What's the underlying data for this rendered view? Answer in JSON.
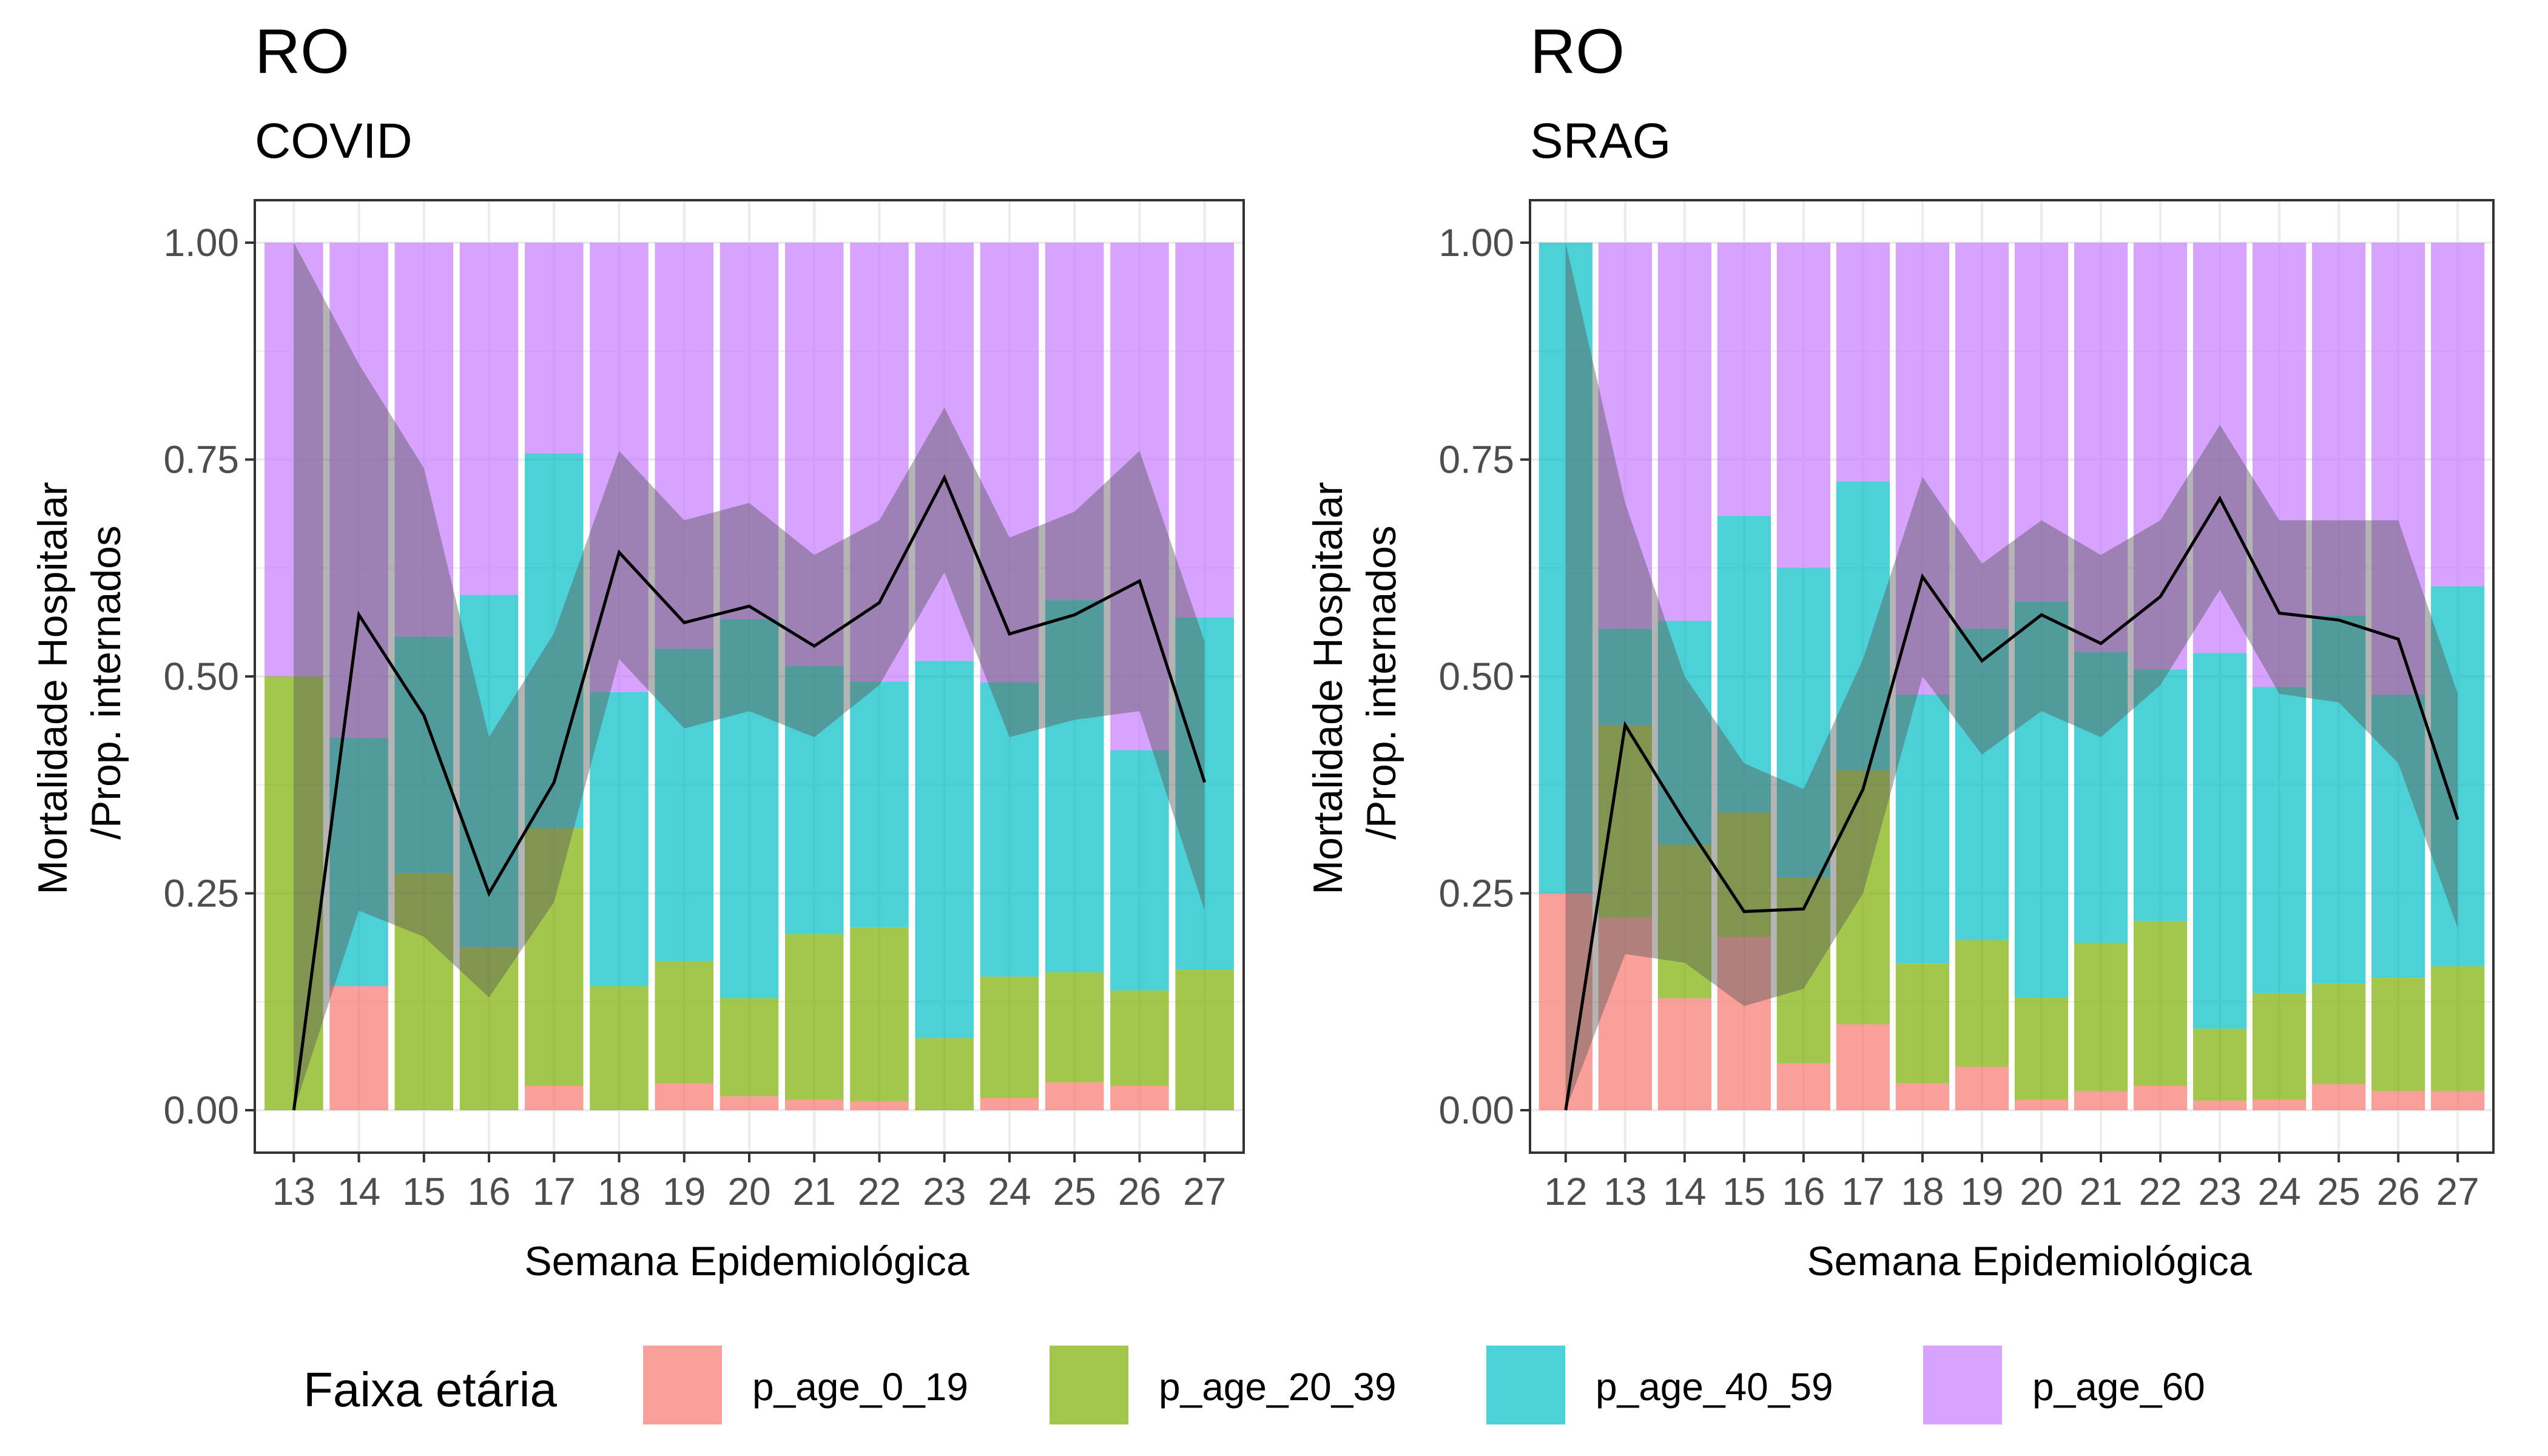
{
  "chart_data": [
    {
      "type": "bar",
      "stacking": "fill",
      "title": "RO",
      "subtitle": "COVID",
      "xlabel": "Semana Epidemiológica",
      "ylabel": "Mortalidade Hospitalar\n/Prop. internados",
      "ylim": [
        0,
        1
      ],
      "yticks": [
        "0.00",
        "0.25",
        "0.50",
        "0.75",
        "1.00"
      ],
      "grid": true,
      "categories": [
        "13",
        "14",
        "15",
        "16",
        "17",
        "18",
        "19",
        "20",
        "21",
        "22",
        "23",
        "24",
        "25",
        "26",
        "27"
      ],
      "series": [
        {
          "name": "p_age_0_19",
          "values": [
            0,
            0.143,
            0,
            0,
            0.028,
            0,
            0.031,
            0.016,
            0.012,
            0.01,
            0,
            0.014,
            0.032,
            0.028,
            0
          ]
        },
        {
          "name": "p_age_20_39",
          "values": [
            0.5,
            0,
            0.273,
            0.188,
            0.297,
            0.143,
            0.141,
            0.113,
            0.191,
            0.201,
            0.083,
            0.14,
            0.127,
            0.11,
            0.162
          ]
        },
        {
          "name": "p_age_40_59",
          "values": [
            0,
            0.286,
            0.273,
            0.406,
            0.432,
            0.339,
            0.36,
            0.437,
            0.309,
            0.283,
            0.435,
            0.339,
            0.429,
            0.277,
            0.406
          ]
        },
        {
          "name": "p_age_60",
          "values": [
            0.5,
            0.571,
            0.454,
            0.406,
            0.243,
            0.518,
            0.468,
            0.434,
            0.488,
            0.506,
            0.482,
            0.507,
            0.412,
            0.585,
            0.432
          ]
        }
      ],
      "mortality": {
        "values": [
          0.0,
          0.571,
          0.455,
          0.25,
          0.378,
          0.643,
          0.562,
          0.581,
          0.535,
          0.585,
          0.729,
          0.549,
          0.571,
          0.61,
          0.378
        ],
        "lower": [
          0.0,
          0.23,
          0.2,
          0.13,
          0.24,
          0.52,
          0.44,
          0.46,
          0.43,
          0.49,
          0.62,
          0.43,
          0.45,
          0.46,
          0.23
        ],
        "upper": [
          1.0,
          0.86,
          0.74,
          0.43,
          0.55,
          0.76,
          0.68,
          0.7,
          0.64,
          0.68,
          0.81,
          0.66,
          0.69,
          0.76,
          0.54
        ]
      }
    },
    {
      "type": "bar",
      "stacking": "fill",
      "title": "RO",
      "subtitle": "SRAG",
      "xlabel": "Semana Epidemiológica",
      "ylabel": "Mortalidade Hospitalar\n/Prop. internados",
      "ylim": [
        0,
        1
      ],
      "yticks": [
        "0.00",
        "0.25",
        "0.50",
        "0.75",
        "1.00"
      ],
      "grid": true,
      "categories": [
        "12",
        "13",
        "14",
        "15",
        "16",
        "17",
        "18",
        "19",
        "20",
        "21",
        "22",
        "23",
        "24",
        "25",
        "26",
        "27"
      ],
      "series": [
        {
          "name": "p_age_0_19",
          "values": [
            0.25,
            0.222,
            0.129,
            0.2,
            0.054,
            0.099,
            0.031,
            0.05,
            0.012,
            0.022,
            0.028,
            0.011,
            0.012,
            0.03,
            0.022,
            0.022
          ]
        },
        {
          "name": "p_age_20_39",
          "values": [
            0,
            0.222,
            0.177,
            0.143,
            0.214,
            0.293,
            0.138,
            0.146,
            0.118,
            0.171,
            0.19,
            0.083,
            0.123,
            0.116,
            0.131,
            0.144
          ]
        },
        {
          "name": "p_age_40_59",
          "values": [
            0.75,
            0.111,
            0.258,
            0.342,
            0.357,
            0.333,
            0.31,
            0.359,
            0.456,
            0.335,
            0.29,
            0.433,
            0.353,
            0.424,
            0.326,
            0.438
          ]
        },
        {
          "name": "p_age_60",
          "values": [
            0,
            0.445,
            0.436,
            0.315,
            0.375,
            0.275,
            0.521,
            0.445,
            0.414,
            0.472,
            0.492,
            0.473,
            0.512,
            0.43,
            0.521,
            0.396
          ]
        }
      ],
      "mortality": {
        "values": [
          0.0,
          0.444,
          0.333,
          0.229,
          0.232,
          0.37,
          0.615,
          0.518,
          0.571,
          0.538,
          0.592,
          0.705,
          0.573,
          0.565,
          0.543,
          0.335
        ],
        "lower": [
          0.0,
          0.18,
          0.17,
          0.12,
          0.14,
          0.25,
          0.5,
          0.41,
          0.46,
          0.43,
          0.49,
          0.6,
          0.48,
          0.47,
          0.4,
          0.21
        ],
        "upper": [
          1.0,
          0.7,
          0.5,
          0.4,
          0.37,
          0.52,
          0.73,
          0.63,
          0.68,
          0.64,
          0.68,
          0.79,
          0.68,
          0.68,
          0.68,
          0.48
        ]
      }
    }
  ],
  "legend": {
    "title": "Faixa etária",
    "items": [
      {
        "label": "p_age_0_19",
        "color": "#F8766D"
      },
      {
        "label": "p_age_20_39",
        "color": "#7CAE00"
      },
      {
        "label": "p_age_40_59",
        "color": "#00BFC4"
      },
      {
        "label": "p_age_60",
        "color": "#C77CFF"
      }
    ]
  },
  "colors": {
    "band": "#595959",
    "line": "#000000",
    "panel_border": "#333333",
    "grid": "#ebebeb",
    "tick_text": "#4d4d4d"
  }
}
